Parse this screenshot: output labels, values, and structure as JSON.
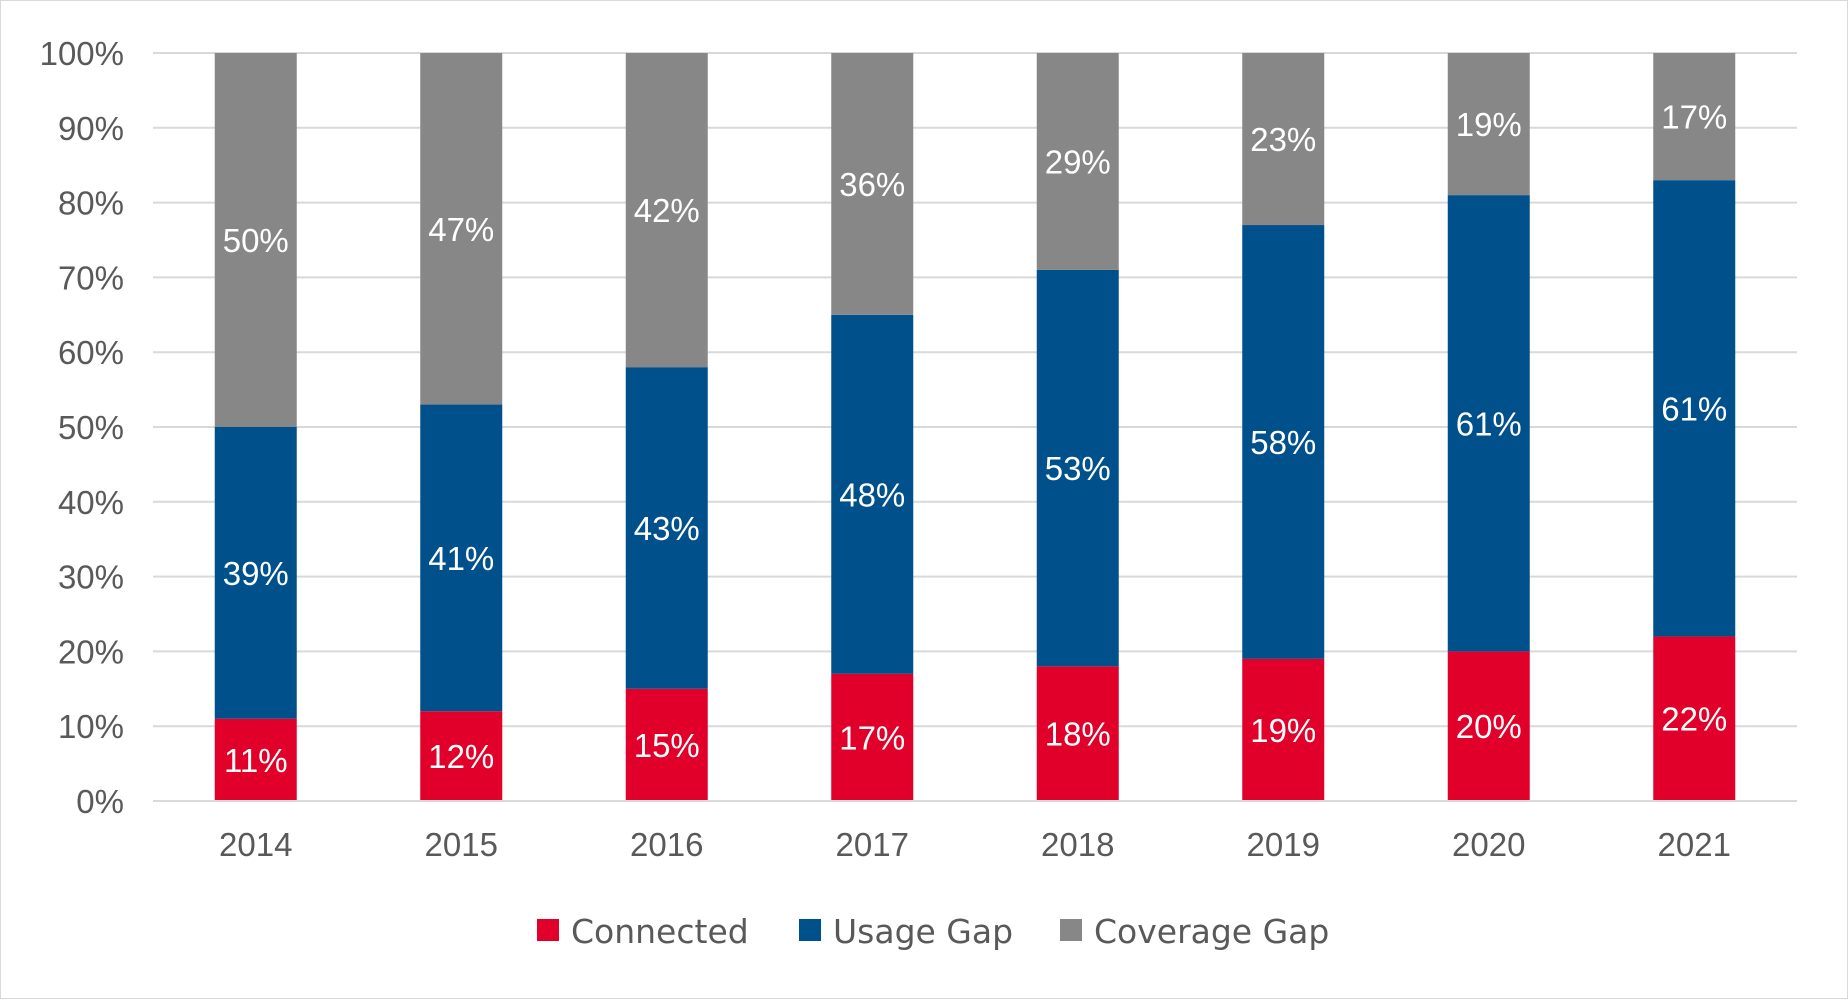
{
  "chart_data": {
    "type": "bar",
    "stacked": true,
    "categories": [
      "2014",
      "2015",
      "2016",
      "2017",
      "2018",
      "2019",
      "2020",
      "2021"
    ],
    "series": [
      {
        "name": "Connected",
        "color": "#e0002a",
        "values": [
          11,
          12,
          15,
          17,
          18,
          19,
          20,
          22
        ],
        "labels": [
          "11%",
          "12%",
          "15%",
          "17%",
          "18%",
          "19%",
          "20%",
          "22%"
        ]
      },
      {
        "name": "Usage Gap",
        "color": "#00508c",
        "values": [
          39,
          41,
          43,
          48,
          53,
          58,
          61,
          61
        ],
        "labels": [
          "39%",
          "41%",
          "43%",
          "48%",
          "53%",
          "58%",
          "61%",
          "61%"
        ]
      },
      {
        "name": "Coverage Gap",
        "color": "#878787",
        "values": [
          50,
          47,
          42,
          36,
          29,
          23,
          19,
          17
        ],
        "labels": [
          "50%",
          "47%",
          "42%",
          "36%",
          "29%",
          "23%",
          "19%",
          "17%"
        ]
      }
    ],
    "ylim": [
      0,
      100
    ],
    "yticks": [
      "0%",
      "10%",
      "20%",
      "30%",
      "40%",
      "50%",
      "60%",
      "70%",
      "80%",
      "90%",
      "100%"
    ],
    "grid": true,
    "legend": "bottom",
    "title": "",
    "xlabel": "",
    "ylabel": ""
  }
}
